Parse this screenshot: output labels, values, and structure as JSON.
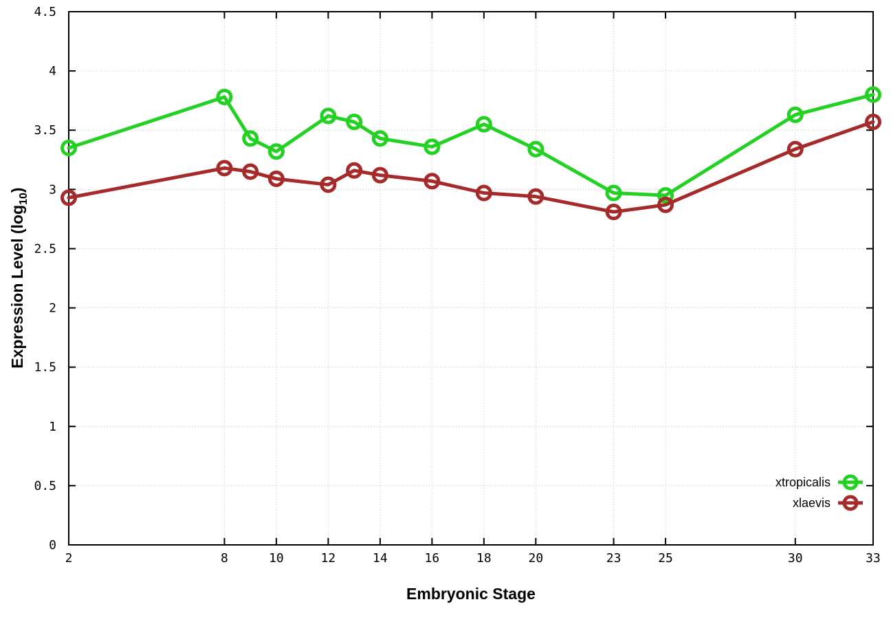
{
  "chart_data": {
    "type": "line",
    "title": "",
    "xlabel": "Embryonic Stage",
    "ylabel": "Expression Level (log10)",
    "ylabel_main": "Expression Level (log",
    "ylabel_sub": "10",
    "ylabel_close": ")",
    "x": [
      2,
      8,
      9,
      10,
      12,
      13,
      14,
      16,
      18,
      20,
      23,
      25,
      30,
      33
    ],
    "series": [
      {
        "name": "xtropicalis",
        "color": "#23d123",
        "values": [
          3.35,
          3.78,
          3.43,
          3.32,
          3.62,
          3.57,
          3.43,
          3.36,
          3.55,
          3.34,
          2.97,
          2.95,
          3.63,
          3.8
        ]
      },
      {
        "name": "xlaevis",
        "color": "#a52a2a",
        "values": [
          2.93,
          3.18,
          3.15,
          3.09,
          3.04,
          3.16,
          3.12,
          3.07,
          2.97,
          2.94,
          2.81,
          2.87,
          3.34,
          3.57
        ]
      }
    ],
    "xlim": [
      2,
      33
    ],
    "ylim": [
      0,
      4.5
    ],
    "x_ticks": [
      2,
      8,
      10,
      12,
      14,
      16,
      18,
      20,
      23,
      25,
      30,
      33
    ],
    "x_tick_labels": [
      "2",
      "8",
      "10",
      "12",
      "14",
      "16",
      "18",
      "20",
      "23",
      "25",
      "30",
      "33"
    ],
    "y_ticks": [
      0,
      0.5,
      1,
      1.5,
      2,
      2.5,
      3,
      3.5,
      4,
      4.5
    ],
    "y_tick_labels": [
      "0",
      "0.5",
      "1",
      "1.5",
      "2",
      "2.5",
      "3",
      "3.5",
      "4",
      "4.5"
    ],
    "grid": true,
    "grid_style": "dotted",
    "legend_position": "bottom-right-inside",
    "colors": {
      "background": "#ffffff",
      "axis": "#000000",
      "grid": "#bdbdbd",
      "text": "#000000"
    }
  }
}
